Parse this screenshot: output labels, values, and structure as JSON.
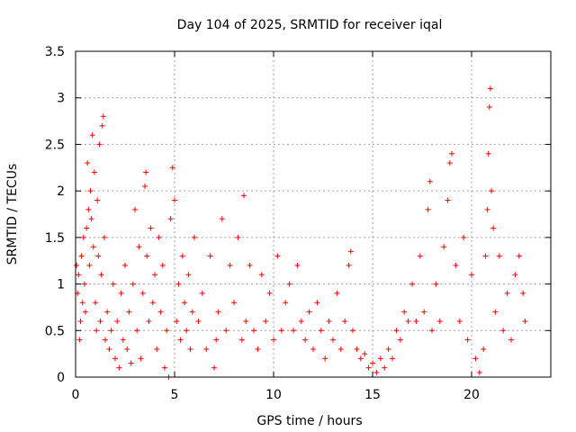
{
  "chart_data": {
    "type": "scatter",
    "title": "Day 104 of 2025, SRMTID for receiver iqal",
    "xlabel": "GPS time / hours",
    "ylabel": "SRMTID / TECUs",
    "xlim": [
      0,
      24
    ],
    "ylim": [
      0,
      3.5
    ],
    "grid": true,
    "marker": "+",
    "colors": {
      "series": "#ff0000",
      "grid": "#a0a0a0",
      "axes": "#000000"
    },
    "x_ticks": [
      {
        "value": 0,
        "label": "0"
      },
      {
        "value": 5,
        "label": "5"
      },
      {
        "value": 10,
        "label": "10"
      },
      {
        "value": 15,
        "label": "15"
      },
      {
        "value": 20,
        "label": "20"
      }
    ],
    "y_ticks": [
      {
        "value": 0,
        "label": "0"
      },
      {
        "value": 0.5,
        "label": "0.5"
      },
      {
        "value": 1,
        "label": "1"
      },
      {
        "value": 1.5,
        "label": "1.5"
      },
      {
        "value": 2,
        "label": "2"
      },
      {
        "value": 2.5,
        "label": "2.5"
      },
      {
        "value": 3,
        "label": "3"
      },
      {
        "value": 3.5,
        "label": "3.5"
      }
    ],
    "series": [
      {
        "name": "SRMTID",
        "points": [
          [
            0.05,
            1.2
          ],
          [
            0.1,
            0.9
          ],
          [
            0.15,
            1.1
          ],
          [
            0.2,
            0.4
          ],
          [
            0.25,
            0.6
          ],
          [
            0.3,
            1.3
          ],
          [
            0.35,
            0.8
          ],
          [
            0.4,
            1.5
          ],
          [
            0.45,
            1.0
          ],
          [
            0.5,
            0.7
          ],
          [
            0.55,
            1.6
          ],
          [
            0.6,
            2.3
          ],
          [
            0.65,
            1.8
          ],
          [
            0.7,
            1.2
          ],
          [
            0.75,
            2.0
          ],
          [
            0.8,
            1.7
          ],
          [
            0.85,
            2.6
          ],
          [
            0.9,
            1.4
          ],
          [
            0.95,
            2.2
          ],
          [
            1.0,
            0.8
          ],
          [
            1.05,
            0.5
          ],
          [
            1.1,
            1.9
          ],
          [
            1.15,
            1.3
          ],
          [
            1.2,
            2.5
          ],
          [
            1.25,
            0.6
          ],
          [
            1.3,
            1.1
          ],
          [
            1.35,
            2.7
          ],
          [
            1.4,
            2.8
          ],
          [
            1.45,
            1.5
          ],
          [
            1.5,
            0.4
          ],
          [
            1.6,
            0.7
          ],
          [
            1.7,
            0.3
          ],
          [
            1.8,
            0.5
          ],
          [
            1.9,
            1.0
          ],
          [
            2.0,
            0.2
          ],
          [
            2.1,
            0.6
          ],
          [
            2.2,
            0.1
          ],
          [
            2.3,
            0.9
          ],
          [
            2.4,
            0.4
          ],
          [
            2.5,
            1.2
          ],
          [
            2.6,
            0.3
          ],
          [
            2.7,
            0.7
          ],
          [
            2.8,
            0.15
          ],
          [
            2.9,
            1.0
          ],
          [
            3.0,
            1.8
          ],
          [
            3.1,
            0.5
          ],
          [
            3.2,
            1.4
          ],
          [
            3.3,
            0.2
          ],
          [
            3.4,
            0.9
          ],
          [
            3.5,
            2.05
          ],
          [
            3.55,
            2.2
          ],
          [
            3.6,
            1.3
          ],
          [
            3.7,
            0.6
          ],
          [
            3.8,
            1.6
          ],
          [
            3.9,
            0.8
          ],
          [
            4.0,
            1.1
          ],
          [
            4.1,
            0.3
          ],
          [
            4.2,
            1.5
          ],
          [
            4.3,
            0.7
          ],
          [
            4.4,
            1.2
          ],
          [
            4.5,
            0.1
          ],
          [
            4.6,
            0.5
          ],
          [
            4.7,
            0.0
          ],
          [
            4.8,
            1.7
          ],
          [
            4.9,
            2.25
          ],
          [
            5.0,
            1.9
          ],
          [
            5.1,
            0.6
          ],
          [
            5.2,
            1.0
          ],
          [
            5.3,
            0.4
          ],
          [
            5.4,
            1.3
          ],
          [
            5.5,
            0.8
          ],
          [
            5.6,
            0.5
          ],
          [
            5.7,
            1.1
          ],
          [
            5.8,
            0.3
          ],
          [
            5.9,
            0.7
          ],
          [
            6.0,
            1.5
          ],
          [
            6.2,
            0.6
          ],
          [
            6.4,
            0.9
          ],
          [
            6.6,
            0.3
          ],
          [
            6.8,
            1.3
          ],
          [
            7.0,
            0.1
          ],
          [
            7.1,
            0.4
          ],
          [
            7.2,
            0.7
          ],
          [
            7.4,
            1.7
          ],
          [
            7.6,
            0.5
          ],
          [
            7.8,
            1.2
          ],
          [
            8.0,
            0.8
          ],
          [
            8.2,
            1.5
          ],
          [
            8.4,
            0.4
          ],
          [
            8.5,
            1.95
          ],
          [
            8.6,
            0.6
          ],
          [
            8.8,
            1.2
          ],
          [
            9.0,
            0.5
          ],
          [
            9.2,
            0.3
          ],
          [
            9.4,
            1.1
          ],
          [
            9.6,
            0.6
          ],
          [
            9.8,
            0.9
          ],
          [
            10.0,
            0.4
          ],
          [
            10.2,
            1.3
          ],
          [
            10.4,
            0.5
          ],
          [
            10.6,
            0.8
          ],
          [
            10.8,
            1.0
          ],
          [
            11.0,
            0.5
          ],
          [
            11.2,
            1.2
          ],
          [
            11.4,
            0.6
          ],
          [
            11.6,
            0.4
          ],
          [
            11.8,
            0.7
          ],
          [
            12.0,
            0.3
          ],
          [
            12.2,
            0.8
          ],
          [
            12.4,
            0.5
          ],
          [
            12.6,
            0.2
          ],
          [
            12.8,
            0.6
          ],
          [
            13.0,
            0.4
          ],
          [
            13.2,
            0.9
          ],
          [
            13.4,
            0.3
          ],
          [
            13.6,
            0.6
          ],
          [
            13.8,
            1.2
          ],
          [
            13.9,
            1.35
          ],
          [
            14.0,
            0.5
          ],
          [
            14.2,
            0.3
          ],
          [
            14.4,
            0.2
          ],
          [
            14.6,
            0.25
          ],
          [
            14.8,
            0.1
          ],
          [
            15.0,
            0.15
          ],
          [
            15.2,
            0.05
          ],
          [
            15.4,
            0.2
          ],
          [
            15.6,
            0.1
          ],
          [
            15.8,
            0.3
          ],
          [
            16.0,
            0.2
          ],
          [
            16.2,
            0.5
          ],
          [
            16.4,
            0.4
          ],
          [
            16.6,
            0.7
          ],
          [
            16.8,
            0.6
          ],
          [
            17.0,
            1.0
          ],
          [
            17.2,
            0.6
          ],
          [
            17.4,
            1.3
          ],
          [
            17.6,
            0.7
          ],
          [
            17.8,
            1.8
          ],
          [
            17.9,
            2.1
          ],
          [
            18.0,
            0.5
          ],
          [
            18.2,
            1.0
          ],
          [
            18.4,
            0.6
          ],
          [
            18.6,
            1.4
          ],
          [
            18.8,
            1.9
          ],
          [
            18.9,
            2.3
          ],
          [
            19.0,
            2.4
          ],
          [
            19.2,
            1.2
          ],
          [
            19.4,
            0.6
          ],
          [
            19.6,
            1.5
          ],
          [
            19.8,
            0.4
          ],
          [
            20.0,
            1.1
          ],
          [
            20.2,
            0.2
          ],
          [
            20.4,
            0.05
          ],
          [
            20.6,
            0.3
          ],
          [
            20.7,
            1.3
          ],
          [
            20.8,
            1.8
          ],
          [
            20.85,
            2.4
          ],
          [
            20.9,
            2.9
          ],
          [
            20.95,
            3.1
          ],
          [
            21.0,
            2.0
          ],
          [
            21.1,
            1.6
          ],
          [
            21.2,
            0.7
          ],
          [
            21.4,
            1.3
          ],
          [
            21.6,
            0.5
          ],
          [
            21.8,
            0.9
          ],
          [
            22.0,
            0.4
          ],
          [
            22.2,
            1.1
          ],
          [
            22.4,
            1.3
          ],
          [
            22.6,
            0.9
          ],
          [
            22.7,
            0.6
          ]
        ]
      }
    ]
  }
}
